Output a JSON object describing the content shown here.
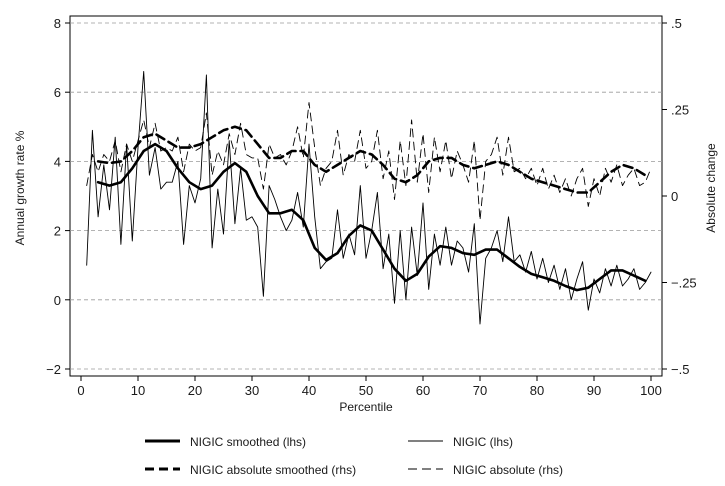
{
  "chart_data": {
    "type": "line",
    "xlabel": "Percentile",
    "ylabel_left": "Annual growth rate %",
    "ylabel_right": "Absolute change",
    "xlim": [
      0,
      100
    ],
    "ylim_left": [
      -2,
      8
    ],
    "ylim_right": [
      -0.5,
      0.5
    ],
    "x_ticks": [
      0,
      10,
      20,
      30,
      40,
      50,
      60,
      70,
      80,
      90,
      100
    ],
    "y_left_ticks": [
      -2,
      0,
      2,
      4,
      6,
      8
    ],
    "y_right_ticks": [
      -0.5,
      -0.25,
      0,
      0.25,
      0.5
    ],
    "y_right_tick_labels": [
      "-.5",
      "-.25",
      "0",
      ".25",
      ".5"
    ],
    "grid": "horizontal dashed lines at left-axis ticks",
    "legend_position": "bottom",
    "series": [
      {
        "name": "NIGIC smoothed (lhs)",
        "axis": "left",
        "style": "thick-solid",
        "color": "#000000",
        "x": [
          3,
          5,
          7,
          9,
          11,
          13,
          15,
          17,
          19,
          21,
          23,
          25,
          27,
          29,
          31,
          33,
          35,
          37,
          39,
          41,
          43,
          45,
          47,
          49,
          51,
          53,
          55,
          57,
          59,
          61,
          63,
          65,
          67,
          69,
          71,
          73,
          75,
          77,
          79,
          81,
          83,
          85,
          87,
          89,
          91,
          93,
          95,
          97,
          99
        ],
        "y": [
          3.4,
          3.3,
          3.4,
          3.8,
          4.3,
          4.5,
          4.3,
          3.8,
          3.4,
          3.2,
          3.3,
          3.7,
          3.95,
          3.7,
          3.0,
          2.5,
          2.5,
          2.6,
          2.3,
          1.5,
          1.15,
          1.35,
          1.85,
          2.15,
          2.0,
          1.45,
          0.9,
          0.55,
          0.75,
          1.25,
          1.55,
          1.5,
          1.35,
          1.3,
          1.45,
          1.45,
          1.2,
          0.95,
          0.75,
          0.65,
          0.55,
          0.4,
          0.28,
          0.35,
          0.6,
          0.85,
          0.85,
          0.7,
          0.55
        ]
      },
      {
        "name": "NIGIC (lhs)",
        "axis": "left",
        "style": "thin-solid",
        "color": "#000000",
        "x": [
          1,
          2,
          3,
          4,
          5,
          6,
          7,
          8,
          9,
          10,
          11,
          12,
          13,
          14,
          15,
          16,
          17,
          18,
          19,
          20,
          21,
          22,
          23,
          24,
          25,
          26,
          27,
          28,
          29,
          30,
          31,
          32,
          33,
          34,
          35,
          36,
          37,
          38,
          39,
          40,
          41,
          42,
          43,
          44,
          45,
          46,
          47,
          48,
          49,
          50,
          51,
          52,
          53,
          54,
          55,
          56,
          57,
          58,
          59,
          60,
          61,
          62,
          63,
          64,
          65,
          66,
          67,
          68,
          69,
          70,
          71,
          72,
          73,
          74,
          75,
          76,
          77,
          78,
          79,
          80,
          81,
          82,
          83,
          84,
          85,
          86,
          87,
          88,
          89,
          90,
          91,
          92,
          93,
          94,
          95,
          96,
          97,
          98,
          99,
          100
        ],
        "y": [
          1.0,
          4.9,
          2.4,
          3.9,
          2.6,
          4.7,
          1.6,
          4.5,
          1.7,
          4.4,
          6.6,
          3.6,
          4.4,
          3.2,
          3.4,
          3.4,
          4.0,
          1.6,
          3.3,
          2.8,
          3.5,
          6.5,
          1.5,
          3.2,
          1.9,
          4.6,
          2.2,
          3.8,
          2.3,
          2.4,
          2.1,
          0.1,
          3.3,
          2.9,
          2.4,
          2.0,
          2.3,
          3.1,
          2.1,
          4.5,
          2.4,
          0.9,
          1.1,
          1.2,
          2.6,
          1.2,
          1.9,
          1.3,
          3.3,
          1.2,
          2.0,
          3.1,
          0.9,
          1.9,
          -0.1,
          2.0,
          0.0,
          2.1,
          0.7,
          2.8,
          0.3,
          1.9,
          1.0,
          2.1,
          1.0,
          1.7,
          1.5,
          0.8,
          2.2,
          -0.7,
          1.2,
          1.5,
          2.0,
          1.1,
          2.4,
          1.1,
          1.3,
          0.8,
          1.4,
          0.6,
          1.2,
          0.5,
          1.0,
          0.3,
          0.9,
          0.0,
          0.6,
          1.1,
          -0.3,
          0.6,
          0.2,
          0.9,
          0.4,
          1.0,
          0.4,
          0.6,
          0.9,
          0.3,
          0.5,
          0.8
        ]
      },
      {
        "name": "NIGIC absolute smoothed (rhs)",
        "axis": "right",
        "style": "thick-dashed",
        "color": "#000000",
        "x": [
          3,
          5,
          7,
          9,
          11,
          13,
          15,
          17,
          19,
          21,
          23,
          25,
          27,
          29,
          31,
          33,
          35,
          37,
          39,
          41,
          43,
          45,
          47,
          49,
          51,
          53,
          55,
          57,
          59,
          61,
          63,
          65,
          67,
          69,
          71,
          73,
          75,
          77,
          79,
          81,
          83,
          85,
          87,
          89,
          91,
          93,
          95,
          97,
          99
        ],
        "y": [
          0.1,
          0.095,
          0.1,
          0.13,
          0.17,
          0.18,
          0.16,
          0.14,
          0.14,
          0.15,
          0.17,
          0.19,
          0.2,
          0.19,
          0.15,
          0.11,
          0.11,
          0.13,
          0.13,
          0.09,
          0.07,
          0.09,
          0.11,
          0.13,
          0.12,
          0.09,
          0.05,
          0.04,
          0.06,
          0.1,
          0.11,
          0.11,
          0.09,
          0.08,
          0.09,
          0.1,
          0.09,
          0.07,
          0.05,
          0.04,
          0.03,
          0.02,
          0.01,
          0.01,
          0.04,
          0.07,
          0.09,
          0.08,
          0.06
        ]
      },
      {
        "name": "NIGIC absolute (rhs)",
        "axis": "right",
        "style": "thin-dashed",
        "color": "#000000",
        "x": [
          1,
          2,
          3,
          4,
          5,
          6,
          7,
          8,
          9,
          10,
          11,
          12,
          13,
          14,
          15,
          16,
          17,
          18,
          19,
          20,
          21,
          22,
          23,
          24,
          25,
          26,
          27,
          28,
          29,
          30,
          31,
          32,
          33,
          34,
          35,
          36,
          37,
          38,
          39,
          40,
          41,
          42,
          43,
          44,
          45,
          46,
          47,
          48,
          49,
          50,
          51,
          52,
          53,
          54,
          55,
          56,
          57,
          58,
          59,
          60,
          61,
          62,
          63,
          64,
          65,
          66,
          67,
          68,
          69,
          70,
          71,
          72,
          73,
          74,
          75,
          76,
          77,
          78,
          79,
          80,
          81,
          82,
          83,
          84,
          85,
          86,
          87,
          88,
          89,
          90,
          91,
          92,
          93,
          94,
          95,
          96,
          97,
          98,
          99,
          100
        ],
        "y": [
          0.03,
          0.12,
          0.07,
          0.12,
          0.1,
          0.16,
          0.07,
          0.15,
          0.1,
          0.16,
          0.22,
          0.14,
          0.21,
          0.13,
          0.14,
          0.13,
          0.17,
          0.07,
          0.15,
          0.13,
          0.14,
          0.24,
          0.06,
          0.13,
          0.09,
          0.18,
          0.12,
          0.21,
          0.12,
          0.11,
          0.11,
          0.02,
          0.15,
          0.11,
          0.12,
          0.09,
          0.13,
          0.2,
          0.11,
          0.27,
          0.14,
          0.03,
          0.08,
          0.1,
          0.19,
          0.06,
          0.12,
          0.1,
          0.19,
          0.08,
          0.1,
          0.19,
          0.05,
          0.13,
          -0.01,
          0.16,
          0.03,
          0.22,
          0.04,
          0.18,
          0.01,
          0.17,
          0.07,
          0.16,
          0.05,
          0.13,
          0.09,
          0.04,
          0.16,
          -0.07,
          0.1,
          0.12,
          0.17,
          0.06,
          0.17,
          0.07,
          0.08,
          0.05,
          0.08,
          0.03,
          0.08,
          0.02,
          0.06,
          0.01,
          0.05,
          0.0,
          0.05,
          0.08,
          -0.03,
          0.05,
          0.0,
          0.08,
          0.04,
          0.09,
          0.03,
          0.06,
          0.08,
          0.03,
          0.04,
          0.08
        ]
      }
    ]
  }
}
